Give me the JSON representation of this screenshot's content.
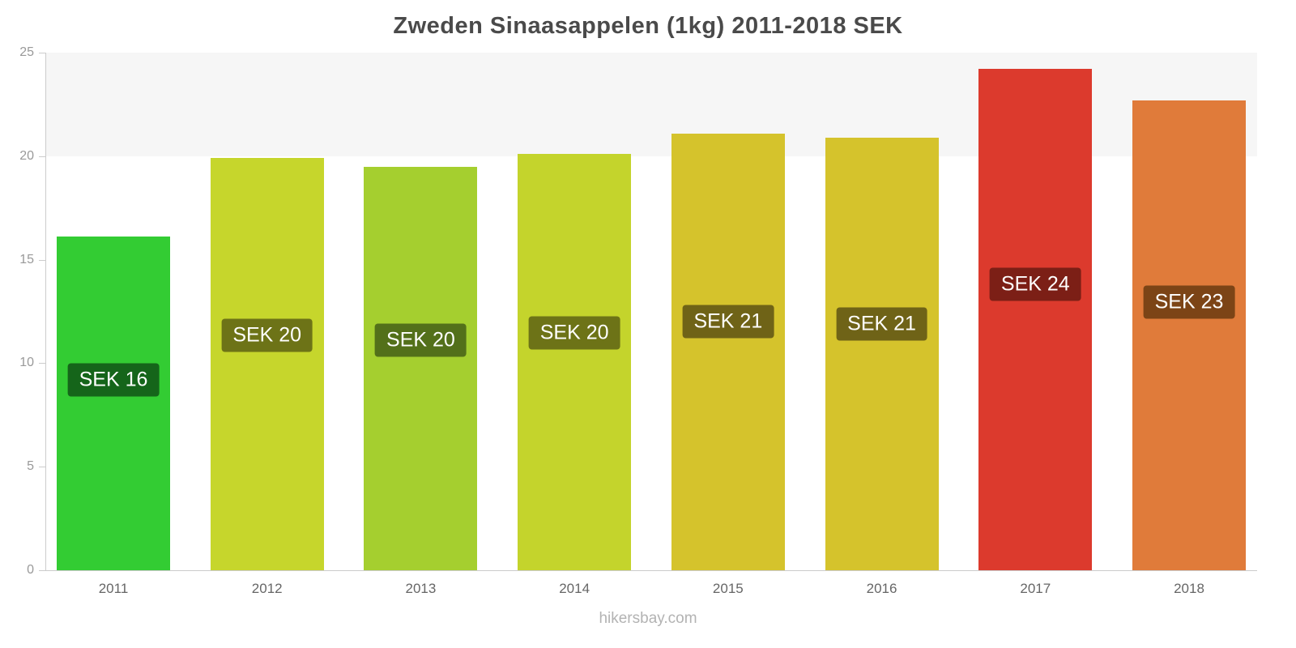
{
  "chart_data": {
    "type": "bar",
    "title": "Zweden Sinaasappelen (1kg) 2011-2018 SEK",
    "categories": [
      "2011",
      "2012",
      "2013",
      "2014",
      "2015",
      "2016",
      "2017",
      "2018"
    ],
    "values": [
      16.1,
      19.9,
      19.5,
      20.1,
      21.1,
      20.9,
      24.2,
      22.7
    ],
    "bar_labels": [
      "SEK 16",
      "SEK 20",
      "SEK 20",
      "SEK 20",
      "SEK 21",
      "SEK 21",
      "SEK 24",
      "SEK 23"
    ],
    "bar_colors": [
      "#33cc33",
      "#c6d62c",
      "#a5cf2f",
      "#c4d42c",
      "#d5c32c",
      "#d5c32c",
      "#dc3a2d",
      "#e07b3a"
    ],
    "label_bg_colors": [
      "#15651a",
      "#6d7317",
      "#53701a",
      "#6d7317",
      "#6f6317",
      "#6f6317",
      "#7c1f16",
      "#7c4416"
    ],
    "ylim": [
      0,
      25
    ],
    "yticks": [
      0,
      5,
      10,
      15,
      20,
      25
    ],
    "xlabel": "",
    "ylabel": "",
    "legend": "none",
    "grid": "off",
    "top_band": {
      "from": 20,
      "to": 25
    }
  },
  "footer": {
    "watermark": "hikersbay.com"
  }
}
